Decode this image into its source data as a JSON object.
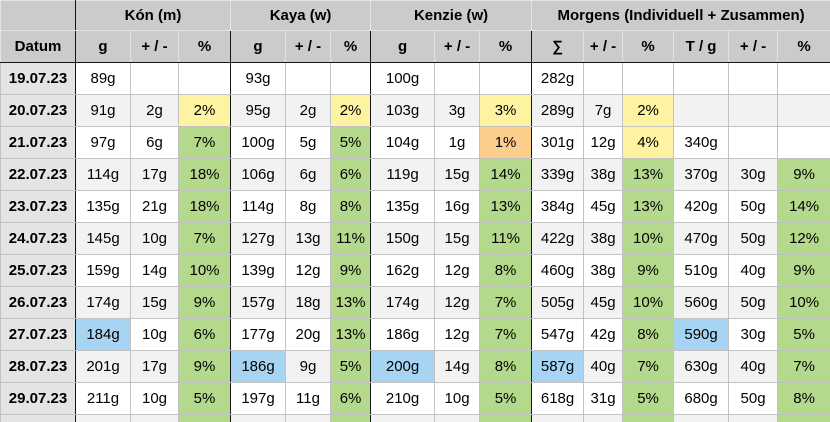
{
  "table": {
    "title": "weight tracking table (morning weights)",
    "groups": [
      {
        "label": "",
        "span": 1
      },
      {
        "label": "Kón (m)",
        "span": 3
      },
      {
        "label": "Kaya (w)",
        "span": 3
      },
      {
        "label": "Kenzie (w)",
        "span": 3
      },
      {
        "label": "Morgens (Individuell + Zusammen)",
        "span": 6
      }
    ],
    "columns": [
      "Datum",
      "g",
      "+ / -",
      "%",
      "g",
      "+ / -",
      "%",
      "g",
      "+ / -",
      "%",
      "∑",
      "+ / -",
      "%",
      "T / g",
      "+ / -",
      "%"
    ],
    "rows": [
      {
        "date": "19.07.23",
        "cells": [
          {
            "t": "89g"
          },
          {
            "t": ""
          },
          {
            "t": ""
          },
          {
            "t": "93g"
          },
          {
            "t": ""
          },
          {
            "t": ""
          },
          {
            "t": "100g"
          },
          {
            "t": ""
          },
          {
            "t": ""
          },
          {
            "t": "282g"
          },
          {
            "t": ""
          },
          {
            "t": ""
          },
          {
            "t": ""
          },
          {
            "t": ""
          },
          {
            "t": ""
          }
        ]
      },
      {
        "date": "20.07.23",
        "cells": [
          {
            "t": "91g"
          },
          {
            "t": "2g"
          },
          {
            "t": "2%",
            "h": "y"
          },
          {
            "t": "95g"
          },
          {
            "t": "2g"
          },
          {
            "t": "2%",
            "h": "y"
          },
          {
            "t": "103g"
          },
          {
            "t": "3g"
          },
          {
            "t": "3%",
            "h": "y"
          },
          {
            "t": "289g"
          },
          {
            "t": "7g"
          },
          {
            "t": "2%",
            "h": "y"
          },
          {
            "t": ""
          },
          {
            "t": ""
          },
          {
            "t": ""
          }
        ]
      },
      {
        "date": "21.07.23",
        "cells": [
          {
            "t": "97g"
          },
          {
            "t": "6g"
          },
          {
            "t": "7%",
            "h": "g"
          },
          {
            "t": "100g"
          },
          {
            "t": "5g"
          },
          {
            "t": "5%",
            "h": "g"
          },
          {
            "t": "104g"
          },
          {
            "t": "1g"
          },
          {
            "t": "1%",
            "h": "o"
          },
          {
            "t": "301g"
          },
          {
            "t": "12g"
          },
          {
            "t": "4%",
            "h": "y"
          },
          {
            "t": "340g"
          },
          {
            "t": ""
          },
          {
            "t": ""
          }
        ]
      },
      {
        "date": "22.07.23",
        "cells": [
          {
            "t": "114g"
          },
          {
            "t": "17g"
          },
          {
            "t": "18%",
            "h": "g"
          },
          {
            "t": "106g"
          },
          {
            "t": "6g"
          },
          {
            "t": "6%",
            "h": "g"
          },
          {
            "t": "119g"
          },
          {
            "t": "15g"
          },
          {
            "t": "14%",
            "h": "g"
          },
          {
            "t": "339g"
          },
          {
            "t": "38g"
          },
          {
            "t": "13%",
            "h": "g"
          },
          {
            "t": "370g"
          },
          {
            "t": "30g"
          },
          {
            "t": "9%",
            "h": "g"
          }
        ]
      },
      {
        "date": "23.07.23",
        "cells": [
          {
            "t": "135g"
          },
          {
            "t": "21g"
          },
          {
            "t": "18%",
            "h": "g"
          },
          {
            "t": "114g"
          },
          {
            "t": "8g"
          },
          {
            "t": "8%",
            "h": "g"
          },
          {
            "t": "135g"
          },
          {
            "t": "16g"
          },
          {
            "t": "13%",
            "h": "g"
          },
          {
            "t": "384g"
          },
          {
            "t": "45g"
          },
          {
            "t": "13%",
            "h": "g"
          },
          {
            "t": "420g"
          },
          {
            "t": "50g"
          },
          {
            "t": "14%",
            "h": "g"
          }
        ]
      },
      {
        "date": "24.07.23",
        "cells": [
          {
            "t": "145g"
          },
          {
            "t": "10g"
          },
          {
            "t": "7%",
            "h": "g"
          },
          {
            "t": "127g"
          },
          {
            "t": "13g"
          },
          {
            "t": "11%",
            "h": "g"
          },
          {
            "t": "150g"
          },
          {
            "t": "15g"
          },
          {
            "t": "11%",
            "h": "g"
          },
          {
            "t": "422g"
          },
          {
            "t": "38g"
          },
          {
            "t": "10%",
            "h": "g"
          },
          {
            "t": "470g"
          },
          {
            "t": "50g"
          },
          {
            "t": "12%",
            "h": "g"
          }
        ]
      },
      {
        "date": "25.07.23",
        "cells": [
          {
            "t": "159g"
          },
          {
            "t": "14g"
          },
          {
            "t": "10%",
            "h": "g"
          },
          {
            "t": "139g"
          },
          {
            "t": "12g"
          },
          {
            "t": "9%",
            "h": "g"
          },
          {
            "t": "162g"
          },
          {
            "t": "12g"
          },
          {
            "t": "8%",
            "h": "g"
          },
          {
            "t": "460g"
          },
          {
            "t": "38g"
          },
          {
            "t": "9%",
            "h": "g"
          },
          {
            "t": "510g"
          },
          {
            "t": "40g"
          },
          {
            "t": "9%",
            "h": "g"
          }
        ]
      },
      {
        "date": "26.07.23",
        "cells": [
          {
            "t": "174g"
          },
          {
            "t": "15g"
          },
          {
            "t": "9%",
            "h": "g"
          },
          {
            "t": "157g"
          },
          {
            "t": "18g"
          },
          {
            "t": "13%",
            "h": "g"
          },
          {
            "t": "174g"
          },
          {
            "t": "12g"
          },
          {
            "t": "7%",
            "h": "g"
          },
          {
            "t": "505g"
          },
          {
            "t": "45g"
          },
          {
            "t": "10%",
            "h": "g"
          },
          {
            "t": "560g"
          },
          {
            "t": "50g"
          },
          {
            "t": "10%",
            "h": "g"
          }
        ]
      },
      {
        "date": "27.07.23",
        "cells": [
          {
            "t": "184g",
            "h": "b"
          },
          {
            "t": "10g"
          },
          {
            "t": "6%",
            "h": "g"
          },
          {
            "t": "177g"
          },
          {
            "t": "20g"
          },
          {
            "t": "13%",
            "h": "g"
          },
          {
            "t": "186g"
          },
          {
            "t": "12g"
          },
          {
            "t": "7%",
            "h": "g"
          },
          {
            "t": "547g"
          },
          {
            "t": "42g"
          },
          {
            "t": "8%",
            "h": "g"
          },
          {
            "t": "590g",
            "h": "b"
          },
          {
            "t": "30g"
          },
          {
            "t": "5%",
            "h": "g"
          }
        ]
      },
      {
        "date": "28.07.23",
        "cells": [
          {
            "t": "201g"
          },
          {
            "t": "17g"
          },
          {
            "t": "9%",
            "h": "g"
          },
          {
            "t": "186g",
            "h": "b"
          },
          {
            "t": "9g"
          },
          {
            "t": "5%",
            "h": "g"
          },
          {
            "t": "200g",
            "h": "b"
          },
          {
            "t": "14g"
          },
          {
            "t": "8%",
            "h": "g"
          },
          {
            "t": "587g",
            "h": "b"
          },
          {
            "t": "40g"
          },
          {
            "t": "7%",
            "h": "g"
          },
          {
            "t": "630g"
          },
          {
            "t": "40g"
          },
          {
            "t": "7%",
            "h": "g"
          }
        ]
      },
      {
        "date": "29.07.23",
        "cells": [
          {
            "t": "211g"
          },
          {
            "t": "10g"
          },
          {
            "t": "5%",
            "h": "g"
          },
          {
            "t": "197g"
          },
          {
            "t": "11g"
          },
          {
            "t": "6%",
            "h": "g"
          },
          {
            "t": "210g"
          },
          {
            "t": "10g"
          },
          {
            "t": "5%",
            "h": "g"
          },
          {
            "t": "618g"
          },
          {
            "t": "31g"
          },
          {
            "t": "5%",
            "h": "g"
          },
          {
            "t": "680g"
          },
          {
            "t": "50g"
          },
          {
            "t": "8%",
            "h": "g"
          }
        ]
      }
    ],
    "partial_row": {
      "note": "next row cut off at bottom edge",
      "green_column_indexes": [
        2,
        5,
        8,
        11,
        14
      ]
    }
  },
  "colors": {
    "header_bg": "#cbcbcb",
    "date_bg": "#e4e4e4",
    "stripe_bg": "#f2f2f2",
    "highlight_yellow": "#fdf3a1",
    "highlight_orange": "#fbcf8b",
    "highlight_green": "#b4d98c",
    "highlight_blue": "#a8d4f4",
    "grid": "#c2c2c2",
    "grid_dark": "#151515"
  }
}
